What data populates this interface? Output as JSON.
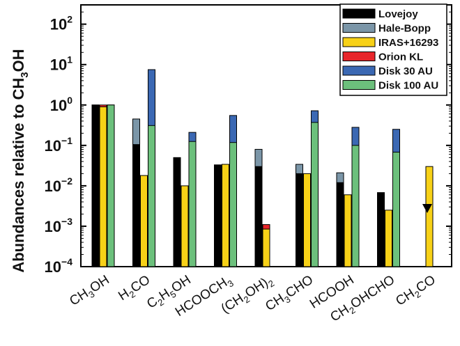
{
  "chart_data": {
    "type": "bar",
    "scale": "log",
    "title": "",
    "xlabel": "",
    "ylabel": "Abundances relative to CH3OH",
    "ylabel_parts": {
      "main": "Abundances relative to CH",
      "sub": "3",
      "tail": "OH"
    },
    "ylim": [
      0.0001,
      300
    ],
    "yticks": [
      {
        "base": "10",
        "exp": "2",
        "value": 100
      },
      {
        "base": "10",
        "exp": "1",
        "value": 10
      },
      {
        "base": "10",
        "exp": "0",
        "value": 1
      },
      {
        "base": "10",
        "exp": "−1",
        "value": 0.1
      },
      {
        "base": "10",
        "exp": "−2",
        "value": 0.01
      },
      {
        "base": "10",
        "exp": "−3",
        "value": 0.001
      },
      {
        "base": "10",
        "exp": "−4",
        "value": 0.0001
      }
    ],
    "categories": [
      "CH3OH",
      "H2CO",
      "C2H5OH",
      "HCOOCH3",
      "(CH2OH)2",
      "CH3CHO",
      "HCOOH",
      "CH2OHCHO",
      "CH2CO"
    ],
    "category_labels": [
      [
        {
          "t": "CH"
        },
        {
          "t": "3",
          "sub": true
        },
        {
          "t": "OH"
        }
      ],
      [
        {
          "t": "H"
        },
        {
          "t": "2",
          "sub": true
        },
        {
          "t": "CO"
        }
      ],
      [
        {
          "t": "C"
        },
        {
          "t": "2",
          "sub": true
        },
        {
          "t": "H"
        },
        {
          "t": "5",
          "sub": true
        },
        {
          "t": "OH"
        }
      ],
      [
        {
          "t": "HCOOCH"
        },
        {
          "t": "3",
          "sub": true
        }
      ],
      [
        {
          "t": "(CH"
        },
        {
          "t": "2",
          "sub": true
        },
        {
          "t": "OH)"
        },
        {
          "t": "2",
          "sub": true
        }
      ],
      [
        {
          "t": "CH"
        },
        {
          "t": "3",
          "sub": true
        },
        {
          "t": "CHO"
        }
      ],
      [
        {
          "t": "HCOOH"
        }
      ],
      [
        {
          "t": "CH"
        },
        {
          "t": "2",
          "sub": true
        },
        {
          "t": "OHCHO"
        }
      ],
      [
        {
          "t": "CH"
        },
        {
          "t": "2",
          "sub": true
        },
        {
          "t": "CO"
        }
      ]
    ],
    "series": [
      {
        "name": "Lovejoy",
        "color": "#000000",
        "slot": 0,
        "values": [
          1.0,
          0.105,
          0.05,
          0.033,
          0.03,
          0.02,
          0.012,
          0.0068,
          null
        ]
      },
      {
        "name": "Hale-Bopp",
        "color": "#7b96a8",
        "slot": 0,
        "values": [
          1.0,
          0.45,
          null,
          0.031,
          0.08,
          0.034,
          0.021,
          null,
          null
        ]
      },
      {
        "name": "IRAS+16293",
        "color": "#f7d117",
        "slot": 1,
        "values": [
          0.9,
          0.018,
          0.01,
          0.034,
          0.00085,
          0.02,
          0.006,
          0.0025,
          0.03
        ]
      },
      {
        "name": "Orion KL",
        "color": "#e8262b",
        "slot": 1,
        "values": [
          1.0,
          null,
          0.006,
          null,
          0.0011,
          null,
          null,
          null,
          null
        ]
      },
      {
        "name": "Disk 30 AU",
        "color": "#3b68b3",
        "slot": 2,
        "values": [
          1.0,
          7.5,
          0.21,
          0.55,
          null,
          0.72,
          0.28,
          0.25,
          null
        ]
      },
      {
        "name": "Disk 100 AU",
        "color": "#6cc07c",
        "slot": 2,
        "values": [
          1.0,
          0.31,
          0.125,
          0.118,
          null,
          0.37,
          0.1,
          0.068,
          null
        ]
      }
    ],
    "upper_limits": [
      {
        "category": "CH2CO",
        "value": 0.0028,
        "marker": "triangle-down",
        "slot": 0
      }
    ],
    "legend": {
      "position": "top-right"
    }
  }
}
